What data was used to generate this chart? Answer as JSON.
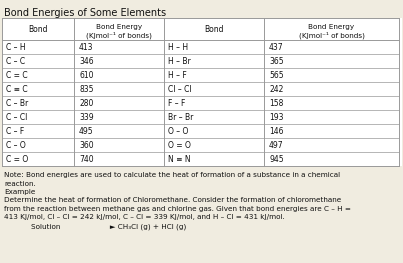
{
  "title": "Bond Energies of Some Elements",
  "left_bonds": [
    "C – H",
    "C – C",
    "C = C",
    "C ≡ C",
    "C – Br",
    "C – Cl",
    "C – F",
    "C – O",
    "C = O"
  ],
  "left_energies": [
    "413",
    "346",
    "610",
    "835",
    "280",
    "339",
    "495",
    "360",
    "740"
  ],
  "right_bonds": [
    "H – H",
    "H – Br",
    "H – F",
    "Cl – Cl",
    "F – F",
    "Br – Br",
    "O – O",
    "O = O",
    "N ≡ N"
  ],
  "right_energies": [
    "437",
    "365",
    "565",
    "242",
    "158",
    "193",
    "146",
    "497",
    "945"
  ],
  "header_left_bond": "Bond",
  "header_left_energy": "Bond Energy\n(KJmol⁻¹ of bonds)",
  "header_right_bond": "Bond",
  "header_right_energy": "Bond Energy\n(KJmol⁻¹ of bonds)",
  "note_line1": "Note: Bond energies are used to calculate the heat of formation of a substance in a chemical",
  "note_line2": "reaction.",
  "note_line3": "Example",
  "note_line4": "Determine the heat of formation of Chloromethane. Consider the formation of chloromethane",
  "note_line5": "from the reaction between methane gas and chlorine gas. Given that bond energies are C – H =",
  "note_line6": "413 KJ/mol, Cl – Cl = 242 kJ/mol, C – Cl = 339 KJ/mol, and H – Cl = 431 kJ/mol.",
  "note_line7": "            Solution                      ► CH₃Cl (g) + HCl (g)",
  "bg_color": "#f0ece0",
  "table_bg": "#ffffff",
  "line_color": "#999999",
  "text_color": "#111111",
  "title_fontsize": 7.0,
  "header_fontsize": 5.5,
  "cell_fontsize": 5.5,
  "note_fontsize": 5.2
}
